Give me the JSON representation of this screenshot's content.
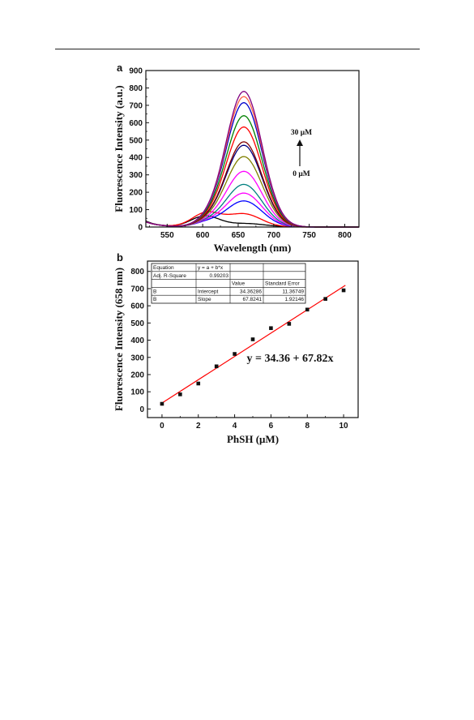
{
  "chart_data": [
    {
      "panel": "a",
      "type": "line",
      "xlabel": "Wavelength (nm)",
      "ylabel": "Fluorescence Intensity (a.u.)",
      "xlim": [
        520,
        820
      ],
      "ylim": [
        0,
        900
      ],
      "xticks": [
        550,
        600,
        650,
        700,
        750,
        800
      ],
      "yticks": [
        0,
        100,
        200,
        300,
        400,
        500,
        600,
        700,
        800,
        900
      ],
      "annotations": {
        "top": "30 μM",
        "bottom": "0 μM"
      },
      "series": [
        {
          "color": "#000000",
          "peak": 65
        },
        {
          "color": "#ff0000",
          "peak": 85
        },
        {
          "color": "#0000ff",
          "peak": 150
        },
        {
          "color": "#ff00ff",
          "peak": 195
        },
        {
          "color": "#008080",
          "peak": 245
        },
        {
          "color": "#ff00ff",
          "peak": 320
        },
        {
          "color": "#808000",
          "peak": 405
        },
        {
          "color": "#000080",
          "peak": 470
        },
        {
          "color": "#800000",
          "peak": 490
        },
        {
          "color": "#ff0000",
          "peak": 575
        },
        {
          "color": "#008000",
          "peak": 640
        },
        {
          "color": "#0000cc",
          "peak": 715
        },
        {
          "color": "#ff6347",
          "peak": 750
        },
        {
          "color": "#800080",
          "peak": 780
        }
      ]
    },
    {
      "panel": "b",
      "type": "scatter",
      "xlabel": "PhSH (μM)",
      "ylabel": "Fluorescence Intensity (658 nm)",
      "xlim": [
        -0.8,
        10.8
      ],
      "ylim": [
        -50,
        860
      ],
      "xticks": [
        0,
        2,
        4,
        6,
        8,
        10
      ],
      "yticks": [
        0,
        100,
        200,
        300,
        400,
        500,
        600,
        700,
        800
      ],
      "x": [
        0,
        1,
        2,
        3,
        4,
        5,
        6,
        7,
        8,
        9,
        10
      ],
      "y": [
        30,
        85,
        148,
        248,
        320,
        405,
        470,
        495,
        578,
        640,
        690
      ],
      "fit": {
        "intercept": 34.36,
        "slope": 67.82,
        "color": "#ff0000"
      },
      "equation_label": "y = 34.36 + 67.82x",
      "fit_table": [
        [
          "Equation",
          "y = a + b*x",
          "",
          ""
        ],
        [
          "Adj. R-Square",
          "0.99203",
          "",
          ""
        ],
        [
          "",
          "",
          "Value",
          "Standard Error"
        ],
        [
          "B",
          "Intercept",
          "34.36286",
          "11.36749"
        ],
        [
          "B",
          "Slope",
          "67.8241",
          "1.92146"
        ]
      ]
    }
  ]
}
